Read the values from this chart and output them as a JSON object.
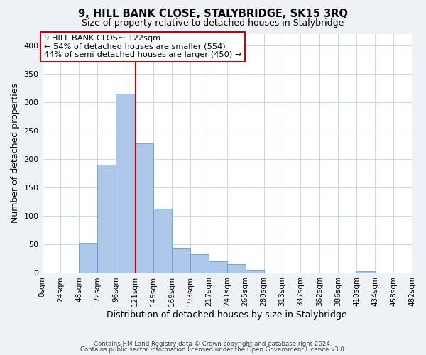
{
  "title": "9, HILL BANK CLOSE, STALYBRIDGE, SK15 3RQ",
  "subtitle": "Size of property relative to detached houses in Stalybridge",
  "xlabel": "Distribution of detached houses by size in Stalybridge",
  "ylabel": "Number of detached properties",
  "bin_edges": [
    0,
    24,
    48,
    72,
    96,
    121,
    145,
    169,
    193,
    217,
    241,
    265,
    289,
    313,
    337,
    362,
    386,
    410,
    434,
    458,
    482
  ],
  "bin_labels": [
    "0sqm",
    "24sqm",
    "48sqm",
    "72sqm",
    "96sqm",
    "121sqm",
    "145sqm",
    "169sqm",
    "193sqm",
    "217sqm",
    "241sqm",
    "265sqm",
    "289sqm",
    "313sqm",
    "337sqm",
    "362sqm",
    "386sqm",
    "410sqm",
    "434sqm",
    "458sqm",
    "482sqm"
  ],
  "counts": [
    0,
    0,
    53,
    190,
    315,
    228,
    113,
    44,
    33,
    21,
    16,
    5,
    0,
    0,
    0,
    0,
    0,
    3,
    1,
    1
  ],
  "bar_color": "#aec6e8",
  "bar_edge_color": "#5a9fd4",
  "property_line_x": 122,
  "property_line_color": "#cc0000",
  "annotation_title": "9 HILL BANK CLOSE: 122sqm",
  "annotation_line1": "← 54% of detached houses are smaller (554)",
  "annotation_line2": "44% of semi-detached houses are larger (450) →",
  "annotation_box_color": "#cc0000",
  "ylim": [
    0,
    420
  ],
  "yticks": [
    0,
    50,
    100,
    150,
    200,
    250,
    300,
    350,
    400
  ],
  "footnote1": "Contains HM Land Registry data © Crown copyright and database right 2024.",
  "footnote2": "Contains public sector information licensed under the Open Government Licence v3.0.",
  "bg_color": "#eef2f7",
  "plot_bg_color": "#ffffff",
  "grid_color": "#c8d8e8"
}
